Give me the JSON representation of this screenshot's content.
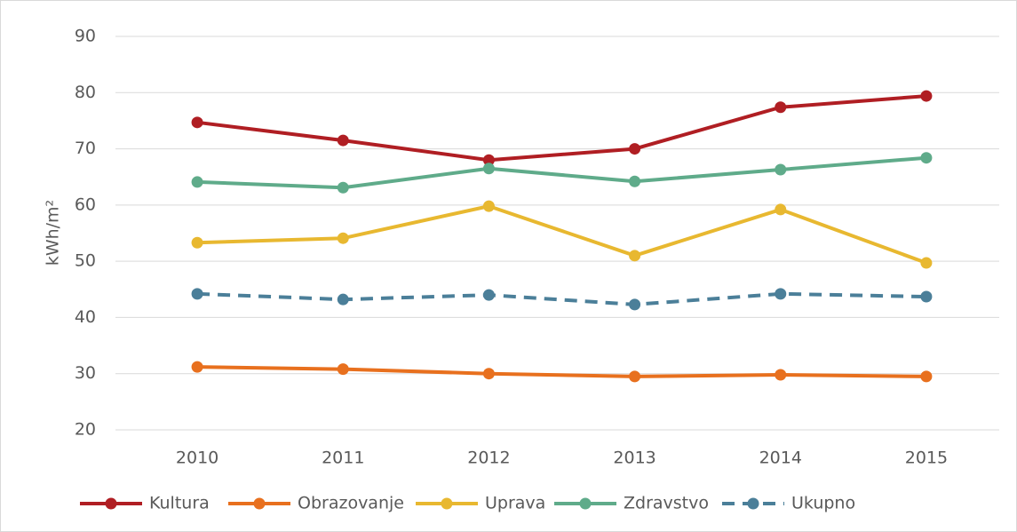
{
  "chart_data": {
    "type": "line",
    "y_label": "kWh/m²",
    "categories": [
      "2010",
      "2011",
      "2012",
      "2013",
      "2014",
      "2015"
    ],
    "series": [
      {
        "name": "Kultura",
        "color": "#b01e23",
        "values": [
          74.7,
          71.5,
          68.0,
          70.0,
          77.4,
          79.4
        ]
      },
      {
        "name": "Obrazovanje",
        "color": "#e8701e",
        "values": [
          31.2,
          30.8,
          30.0,
          29.5,
          29.8,
          29.5
        ]
      },
      {
        "name": "Uprava",
        "color": "#e8b830",
        "values": [
          53.3,
          54.1,
          59.8,
          51.0,
          59.2,
          49.7
        ]
      },
      {
        "name": "Zdravstvo",
        "color": "#5fab8a",
        "values": [
          64.1,
          63.1,
          66.5,
          64.2,
          66.3,
          68.4
        ]
      },
      {
        "name": "Ukupno",
        "color": "#4b7f99",
        "dashed": true,
        "values": [
          44.2,
          43.2,
          44.0,
          42.3,
          44.2,
          43.7
        ]
      }
    ],
    "ylim": [
      20,
      90
    ],
    "yticks": [
      20,
      30,
      40,
      50,
      60,
      70,
      80,
      90
    ],
    "grid": true,
    "legend": "bottom"
  }
}
